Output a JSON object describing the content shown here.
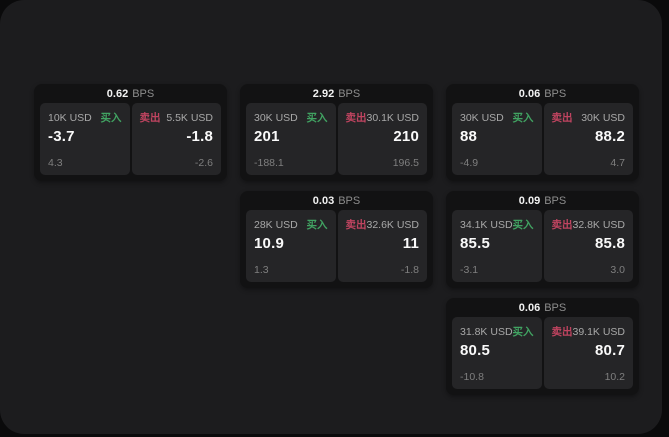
{
  "theme": {
    "outer_background": "#0a0a0b",
    "panel_background": "#1c1c1e",
    "card_background": "#121213",
    "tile_background": "#252527",
    "buy_color": "#41a362",
    "sell_color": "#c04460",
    "value_color": "#fafafa",
    "muted_color": "#a8a8a8",
    "dim_color": "#7f7f7f"
  },
  "labels": {
    "bps": "BPS",
    "buy": "买入",
    "sell": "卖出"
  },
  "cards": [
    {
      "bps": "0.62",
      "buy": {
        "amount": "10K USD",
        "value": "-3.7",
        "sub": "4.3"
      },
      "sell": {
        "amount": "5.5K USD",
        "value": "-1.8",
        "sub": "-2.6"
      }
    },
    {
      "bps": "2.92",
      "buy": {
        "amount": "30K USD",
        "value": "201",
        "sub": "-188.1"
      },
      "sell": {
        "amount": "30.1K USD",
        "value": "210",
        "sub": "196.5"
      }
    },
    {
      "bps": "0.06",
      "buy": {
        "amount": "30K USD",
        "value": "88",
        "sub": "-4.9"
      },
      "sell": {
        "amount": "30K USD",
        "value": "88.2",
        "sub": "4.7"
      }
    },
    {
      "bps": "0.03",
      "buy": {
        "amount": "28K USD",
        "value": "10.9",
        "sub": "1.3"
      },
      "sell": {
        "amount": "32.6K USD",
        "value": "11",
        "sub": "-1.8"
      }
    },
    {
      "bps": "0.09",
      "buy": {
        "amount": "34.1K USD",
        "value": "85.5",
        "sub": "-3.1"
      },
      "sell": {
        "amount": "32.8K USD",
        "value": "85.8",
        "sub": "3.0"
      }
    },
    {
      "bps": "0.06",
      "buy": {
        "amount": "31.8K USD",
        "value": "80.5",
        "sub": "-10.8"
      },
      "sell": {
        "amount": "39.1K USD",
        "value": "80.7",
        "sub": "10.2"
      }
    }
  ]
}
